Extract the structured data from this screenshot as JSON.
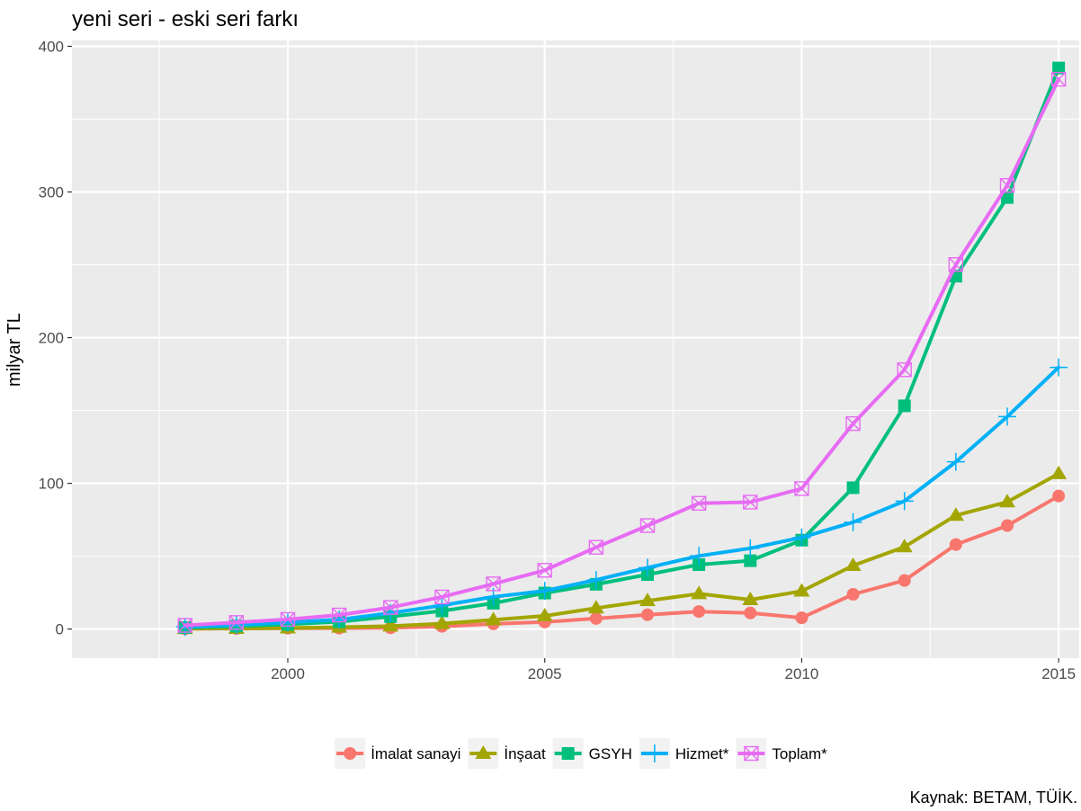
{
  "chart_data": {
    "type": "line",
    "title": "yeni seri - eski seri farkı",
    "xlabel": "",
    "ylabel": "milyar TL",
    "caption": "Kaynak: BETAM, TÜİK.",
    "x": [
      1998,
      1999,
      2000,
      2001,
      2002,
      2003,
      2004,
      2005,
      2006,
      2007,
      2008,
      2009,
      2010,
      2011,
      2012,
      2013,
      2014,
      2015
    ],
    "xlim": [
      1995.8,
      2015.4
    ],
    "ylim": [
      -20,
      404
    ],
    "x_ticks": [
      2000,
      2005,
      2010,
      2015
    ],
    "y_ticks": [
      0,
      100,
      200,
      300,
      400
    ],
    "x_tick_labels": [
      "2000",
      "2005",
      "2010",
      "2015"
    ],
    "y_tick_labels": [
      "0",
      "100",
      "200",
      "300",
      "400"
    ],
    "grid": true,
    "legend_position": "bottom",
    "series": [
      {
        "name": "İmalat sanayi",
        "color": "#F8766D",
        "marker": "circle",
        "values": [
          0.2,
          0.3,
          0.5,
          0.6,
          0.8,
          1.8,
          3.5,
          4.8,
          7.2,
          9.8,
          12.0,
          11.0,
          7.7,
          23.8,
          33.3,
          58.0,
          71.0,
          91.3
        ]
      },
      {
        "name": "İnşaat",
        "color": "#A3A500",
        "marker": "triangle",
        "values": [
          0.3,
          0.4,
          0.7,
          1.2,
          2.0,
          3.7,
          6.3,
          9.0,
          14.4,
          19.4,
          24.2,
          20.1,
          26.0,
          43.6,
          56.4,
          78.0,
          87.2,
          106.6
        ]
      },
      {
        "name": "GSYH",
        "color": "#00BF7D",
        "marker": "square",
        "values": [
          1.0,
          2.0,
          3.2,
          5.0,
          8.5,
          12.4,
          17.7,
          24.7,
          30.7,
          37.4,
          44.2,
          46.9,
          61.0,
          97.0,
          153.2,
          242.2,
          296.2,
          385.1
        ]
      },
      {
        "name": "Hizmet*",
        "color": "#00B0F6",
        "marker": "plus",
        "values": [
          1.5,
          2.8,
          4.5,
          6.5,
          10.9,
          16.2,
          22.1,
          26.2,
          33.7,
          42.1,
          50.2,
          55.4,
          62.8,
          73.3,
          87.8,
          114.8,
          145.8,
          179.6
        ]
      },
      {
        "name": "Toplam*",
        "color": "#E76BF3",
        "marker": "squarecross",
        "values": [
          2.5,
          4.5,
          6.6,
          9.6,
          14.8,
          22.0,
          31.0,
          40.3,
          56.1,
          71.0,
          86.3,
          87.1,
          96.4,
          141.0,
          178.0,
          250.2,
          304.5,
          377.4
        ]
      }
    ]
  }
}
